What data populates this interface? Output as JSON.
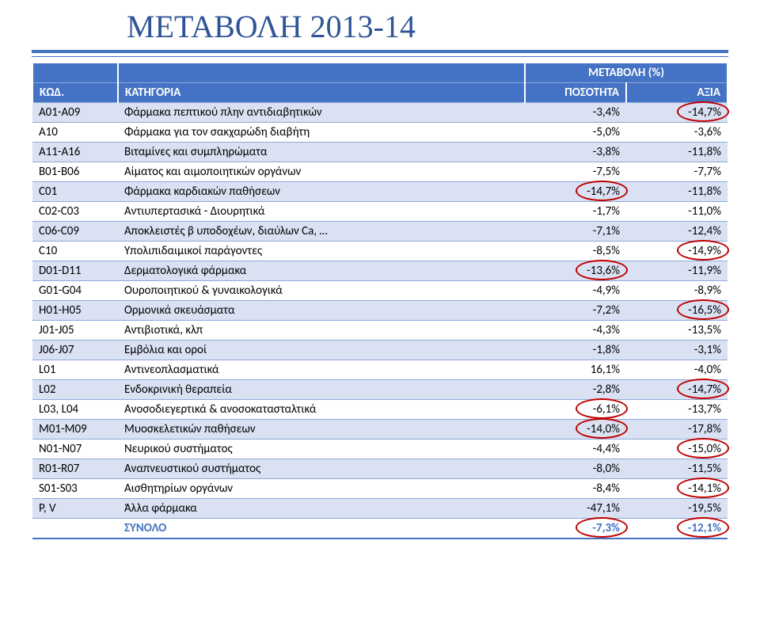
{
  "title": "ΜΕΤΑΒΟΛΗ 2013-14",
  "super_header": "ΜΕΤΑΒΟΛΗ (%)",
  "columns": {
    "code": "ΚΩΔ.",
    "category": "ΚΑΤΗΓΟΡΙΑ",
    "qty": "ΠΟΣΟΤΗΤΑ",
    "value": "ΑΞΙΑ"
  },
  "rows": [
    {
      "code": "A01-A09",
      "cat": "Φάρμακα πεπτικού πλην αντιδιαβητικών",
      "qty": "-3,4%",
      "val": "-14,7%",
      "circles": [
        "val"
      ]
    },
    {
      "code": "A10",
      "cat": "Φάρμακα για τον σακχαρώδη διαβήτη",
      "qty": "-5,0%",
      "val": "-3,6%",
      "circles": []
    },
    {
      "code": "A11-A16",
      "cat": "Βιταμίνες και συμπληρώματα",
      "qty": "-3,8%",
      "val": "-11,8%",
      "circles": []
    },
    {
      "code": "B01-B06",
      "cat": "Αίματος και αιμοποιητικών οργάνων",
      "qty": "-7,5%",
      "val": "-7,7%",
      "circles": []
    },
    {
      "code": "C01",
      "cat": "Φάρμακα καρδιακών παθήσεων",
      "qty": "-14,7%",
      "val": "-11,8%",
      "circles": [
        "qty"
      ]
    },
    {
      "code": "C02-C03",
      "cat": "Αντιυπερτασικά - Διουρητικά",
      "qty": "-1,7%",
      "val": "-11,0%",
      "circles": []
    },
    {
      "code": "C06-C09",
      "cat": "Αποκλειστές β υποδοχέων, διαύλων Ca, …",
      "qty": "-7,1%",
      "val": "-12,4%",
      "circles": []
    },
    {
      "code": "C10",
      "cat": "Υπολιπιδαιμικοί παράγοντες",
      "qty": "-8,5%",
      "val": "-14,9%",
      "circles": [
        "val"
      ]
    },
    {
      "code": "D01-D11",
      "cat": "Δερματολογικά φάρμακα",
      "qty": "-13,6%",
      "val": "-11,9%",
      "circles": [
        "qty"
      ]
    },
    {
      "code": "G01-G04",
      "cat": "Ουροποιητικού & γυναικολογικά",
      "qty": "-4,9%",
      "val": "-8,9%",
      "circles": []
    },
    {
      "code": "H01-H05",
      "cat": "Ορμονικά σκευάσματα",
      "qty": "-7,2%",
      "val": "-16,5%",
      "circles": [
        "val"
      ]
    },
    {
      "code": "J01-J05",
      "cat": "Αντιβιοτικά, κλπ",
      "qty": "-4,3%",
      "val": "-13,5%",
      "circles": []
    },
    {
      "code": "J06-J07",
      "cat": "Εμβόλια και οροί",
      "qty": "-1,8%",
      "val": "-3,1%",
      "circles": []
    },
    {
      "code": "L01",
      "cat": "Αντινεοπλασματικά",
      "qty": "16,1%",
      "val": "-4,0%",
      "circles": []
    },
    {
      "code": "L02",
      "cat": "Ενδοκρινική θεραπεία",
      "qty": "-2,8%",
      "val": "-14,7%",
      "circles": [
        "val"
      ]
    },
    {
      "code": "L03, L04",
      "cat": "Ανοσοδιεγερτικά & ανοσοκατασταλτικά",
      "qty": "-6,1%",
      "val": "-13,7%",
      "circles": [
        "qty"
      ]
    },
    {
      "code": "M01-M09",
      "cat": "Μυοσκελετικών παθήσεων",
      "qty": "-14,0%",
      "val": "-17,8%",
      "circles": [
        "qty"
      ]
    },
    {
      "code": "N01-N07",
      "cat": "Νευρικού συστήματος",
      "qty": "-4,4%",
      "val": "-15,0%",
      "circles": [
        "val"
      ]
    },
    {
      "code": "R01-R07",
      "cat": "Αναπνευστικού συστήματος",
      "qty": "-8,0%",
      "val": "-11,5%",
      "circles": []
    },
    {
      "code": "S01-S03",
      "cat": "Αισθητηρίων οργάνων",
      "qty": "-8,4%",
      "val": "-14,1%",
      "circles": [
        "val"
      ]
    },
    {
      "code": "P, V",
      "cat": "Άλλα φάρμακα",
      "qty": "-47,1%",
      "val": "-19,5%",
      "circles": []
    }
  ],
  "total": {
    "code": "",
    "label": "ΣΥΝΟΛΟ",
    "qty": "-7,3%",
    "val": "-12,1%",
    "circles": [
      "qty",
      "val"
    ]
  },
  "styling": {
    "title_color": "#2f5496",
    "header_bg": "#4472c4",
    "header_fg": "#ffffff",
    "row_alt_bg": "#d9e1f2",
    "row_bg": "#ffffff",
    "border_color": "#8ea9db",
    "circle_color": "#c00000",
    "title_fontsize": 40,
    "body_fontsize": 15
  }
}
